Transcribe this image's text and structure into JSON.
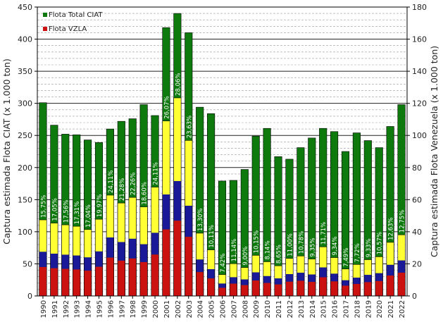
{
  "chart_data": {
    "type": "bar",
    "categories": [
      "1990",
      "1991",
      "1992",
      "1993",
      "1994",
      "1995",
      "1996",
      "1997",
      "1998",
      "1999",
      "2000",
      "2001",
      "2002",
      "2003",
      "2004",
      "2005",
      "2006",
      "2007",
      "2008",
      "2009",
      "2010",
      "2011",
      "2012",
      "2013",
      "2014",
      "2015",
      "2016",
      "2017",
      "2018",
      "2019",
      "2020",
      "2021",
      "2022"
    ],
    "series": [
      {
        "name": "Flota Total CIAT",
        "axis": "left",
        "values": [
          301,
          266,
          252,
          251,
          243,
          239,
          260,
          272,
          276,
          298,
          281,
          418,
          440,
          410,
          294,
          284,
          179,
          180,
          197,
          249,
          261,
          217,
          213,
          231,
          246,
          261,
          256,
          225,
          254,
          242,
          231,
          264,
          298
        ],
        "color": "#0e7a0e"
      },
      {
        "name": "Flota VZLA",
        "axis": "right",
        "values": [
          47.4,
          45.4,
          44.3,
          43.4,
          41.4,
          47.8,
          62.8,
          57.9,
          61.4,
          55.5,
          67.8,
          109,
          123.4,
          96.9,
          39.1,
          28.7,
          13.3,
          20.1,
          17.7,
          25.3,
          21.3,
          18.8,
          23.4,
          24.9,
          23,
          30.6,
          23.9,
          16.8,
          19.6,
          22.6,
          24.4,
          33.4,
          38.1
        ],
        "color": "#ffff33"
      }
    ],
    "percent_labels": [
      "15,75%",
      "17,05%",
      "17,56%",
      "17,31%",
      "17,04%",
      "19,97%",
      "24,11%",
      "21,28%",
      "22,26%",
      "18,60%",
      "24,11%",
      "26,07%",
      "28,06%",
      "23,63%",
      "13,30%",
      "10,11%",
      "7,42%",
      "11,14%",
      "9,00%",
      "10,15%",
      "8,14%",
      "8,65%",
      "11,00%",
      "10,78%",
      "9,35%",
      "11,71%",
      "9,34%",
      "7,49%",
      "7,72%",
      "9,33%",
      "10,57%",
      "12,63%",
      "12,75%"
    ],
    "stack_colors": [
      "#cc1111",
      "#1a1a99",
      "#ffff33"
    ],
    "ylabel": "Captura estimada Flota CIAT (x 1.000 ton)",
    "y2label": "Captura estimada Flota Venezuela (x 1.000 ton)",
    "ylim": [
      0,
      450
    ],
    "y2lim": [
      0,
      180
    ],
    "yticks": [
      "0",
      "50",
      "100",
      "150",
      "200",
      "250",
      "300",
      "350",
      "400",
      "450"
    ],
    "y2ticks": [
      "0",
      "20",
      "40",
      "60",
      "80",
      "100",
      "120",
      "140",
      "160",
      "180"
    ],
    "grid": true,
    "legend_position": "top-left"
  }
}
